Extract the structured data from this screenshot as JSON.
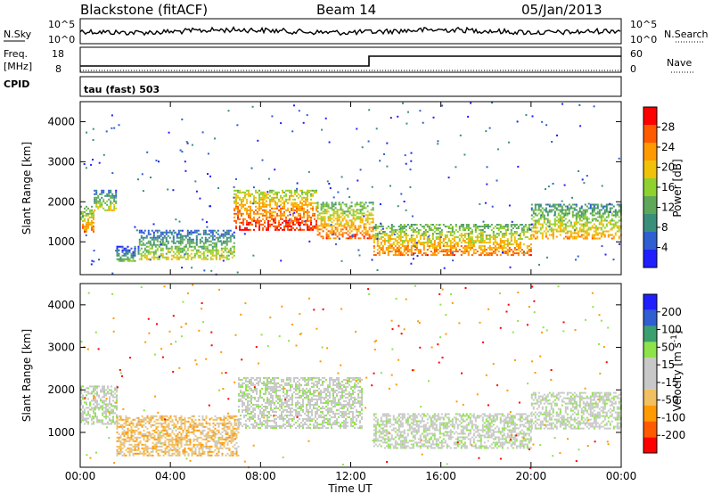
{
  "header": {
    "radar": "Blackstone (fitACF)",
    "beam": "Beam 14",
    "date": "05/Jan/2013"
  },
  "status_panels": {
    "nsky_label": "N.Sky",
    "nsearch_label": "N.Search",
    "noise_ticks_left": [
      "10^5",
      "10^0"
    ],
    "noise_ticks_right": [
      "10^5",
      "10^0"
    ],
    "freq_label": "Freq.",
    "freq_unit": "[MHz]",
    "freq_ticks": [
      "18",
      "8"
    ],
    "nave_label": "Nave",
    "nave_ticks": [
      "60",
      "0"
    ],
    "cpid_label": "CPID",
    "cpid_value": "tau (fast) 503"
  },
  "colors": {
    "power_scale": [
      "#1f1fff",
      "#2f5fd0",
      "#3a8f7a",
      "#5fa85a",
      "#8fd12f",
      "#f0c20a",
      "#ff9a00",
      "#ff5a00",
      "#ff0000"
    ],
    "velocity_scale": [
      "#ff0000",
      "#ff5a00",
      "#ff9a00",
      "#f2c060",
      "#c8c8c8",
      "#c8c8c8",
      "#8ee34a",
      "#3aa070",
      "#2f5fd0",
      "#1f1fff"
    ]
  },
  "chart_data": [
    {
      "type": "heatmap",
      "name": "power-panel",
      "xlabel": "",
      "ylabel": "Slant Range [km]",
      "x_range": [
        0,
        24
      ],
      "y_range": [
        180,
        4500
      ],
      "yticks": [
        1000,
        2000,
        3000,
        4000
      ],
      "colorbar": {
        "label": "Power [dB]",
        "ticks": [
          "4",
          "8",
          "12",
          "16",
          "20",
          "24",
          "28"
        ],
        "range": [
          0,
          32
        ]
      },
      "echo_bands": [
        {
          "t0": 0.0,
          "t1": 0.6,
          "r0": 1250,
          "r1": 1900,
          "level": 18
        },
        {
          "t0": 0.6,
          "t1": 1.6,
          "r0": 1800,
          "r1": 2300,
          "level": 10
        },
        {
          "t0": 1.6,
          "t1": 2.6,
          "r0": 500,
          "r1": 900,
          "level": 8
        },
        {
          "t0": 2.6,
          "t1": 6.8,
          "r0": 550,
          "r1": 1300,
          "level": 12
        },
        {
          "t0": 6.8,
          "t1": 10.5,
          "r0": 1300,
          "r1": 2300,
          "level": 24
        },
        {
          "t0": 10.5,
          "t1": 13.0,
          "r0": 1100,
          "r1": 2000,
          "level": 20
        },
        {
          "t0": 13.0,
          "t1": 20.0,
          "r0": 650,
          "r1": 1450,
          "level": 20
        },
        {
          "t0": 20.0,
          "t1": 24.0,
          "r0": 1100,
          "r1": 1950,
          "level": 16
        }
      ]
    },
    {
      "type": "heatmap",
      "name": "velocity-panel",
      "xlabel": "Time UT",
      "ylabel": "Slant Range [km]",
      "x_range": [
        0,
        24
      ],
      "y_range": [
        180,
        4500
      ],
      "xticks": [
        "00:00",
        "04:00",
        "08:00",
        "12:00",
        "16:00",
        "20:00",
        "00:00"
      ],
      "yticks": [
        1000,
        2000,
        3000,
        4000
      ],
      "colorbar": {
        "label": "Velocity [m s^-1]",
        "ticks": [
          "200",
          "100",
          "50",
          "15",
          "-15",
          "-50",
          "-100",
          "-200"
        ],
        "range": [
          -250,
          250
        ]
      },
      "echo_bands": [
        {
          "t0": 0.0,
          "t1": 1.6,
          "r0": 1200,
          "r1": 2100,
          "level": 0
        },
        {
          "t0": 1.6,
          "t1": 7.0,
          "r0": 450,
          "r1": 1400,
          "level": -70
        },
        {
          "t0": 7.0,
          "t1": 12.5,
          "r0": 1100,
          "r1": 2300,
          "level": 0
        },
        {
          "t0": 13.0,
          "t1": 20.0,
          "r0": 650,
          "r1": 1450,
          "level": 0
        },
        {
          "t0": 20.0,
          "t1": 24.0,
          "r0": 1100,
          "r1": 1950,
          "level": 0
        }
      ]
    }
  ]
}
